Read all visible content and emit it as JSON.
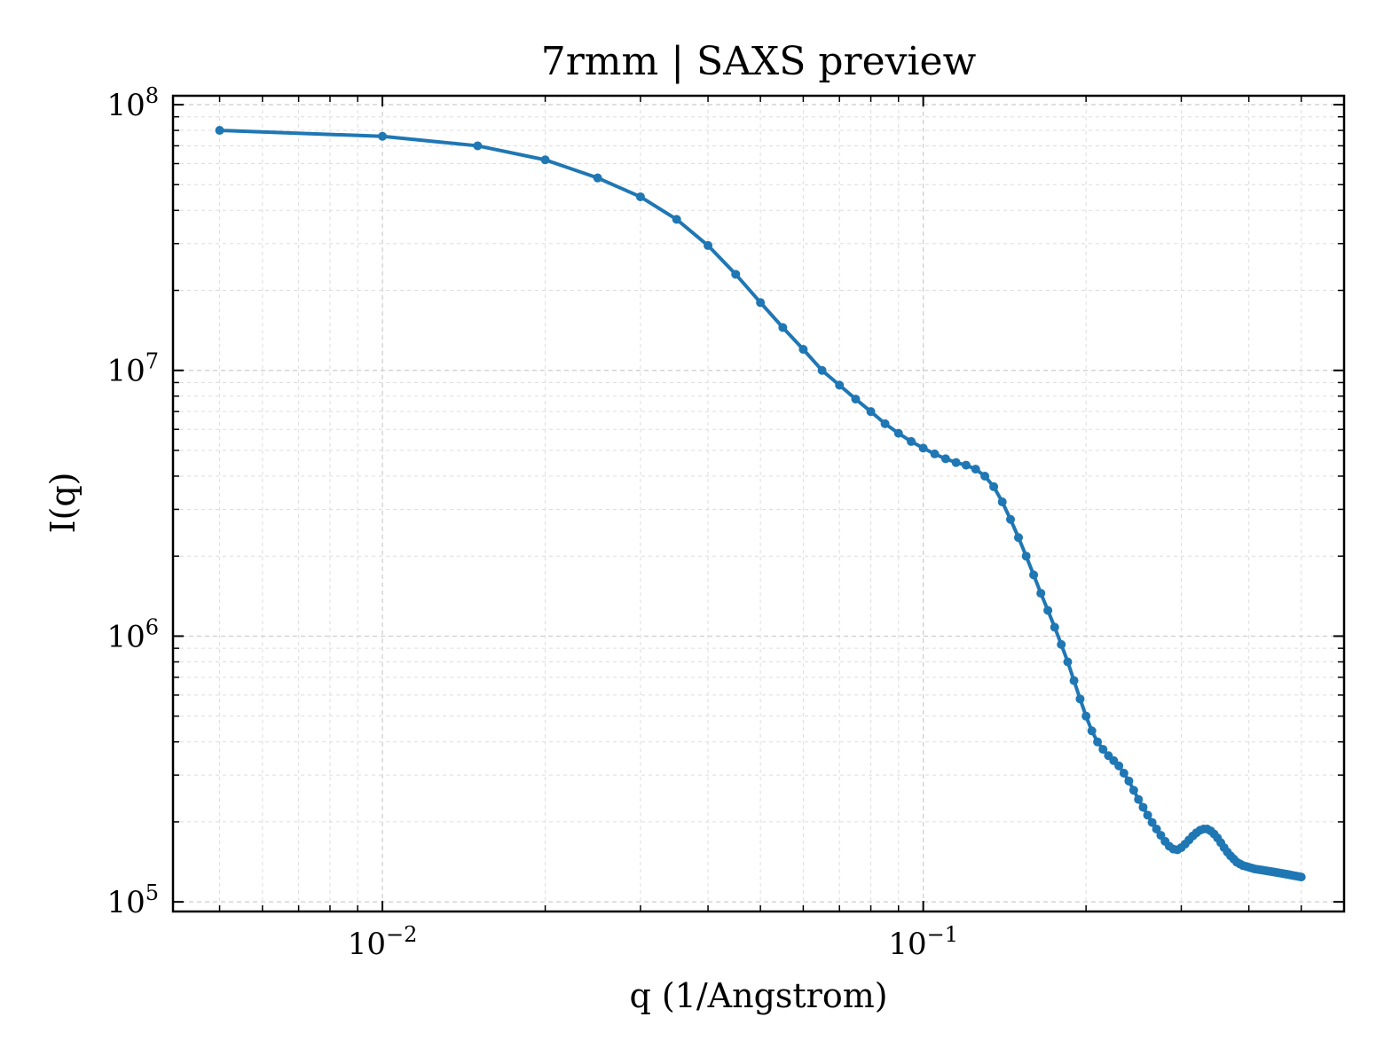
{
  "chart_data": {
    "type": "line",
    "title": "7rmm | SAXS preview",
    "xlabel": "q (1/Angstrom)",
    "ylabel": "I(q)",
    "xscale": "log",
    "yscale": "log",
    "xlim": [
      0.0041,
      0.6
    ],
    "ylim": [
      92000,
      108000000
    ],
    "grid": true,
    "x_ticks": [
      {
        "base": "10",
        "exp": "−2",
        "value": 0.01
      },
      {
        "base": "10",
        "exp": "−1",
        "value": 0.1
      }
    ],
    "y_ticks": [
      {
        "base": "10",
        "exp": "5",
        "value": 100000
      },
      {
        "base": "10",
        "exp": "6",
        "value": 1000000
      },
      {
        "base": "10",
        "exp": "7",
        "value": 10000000
      },
      {
        "base": "10",
        "exp": "8",
        "value": 100000000
      }
    ],
    "colors": {
      "series": "#1f77b4"
    },
    "series": [
      {
        "marker": "circle",
        "x": [
          0.005,
          0.01,
          0.015,
          0.02,
          0.025,
          0.03,
          0.035,
          0.04,
          0.045,
          0.05,
          0.055,
          0.06,
          0.065,
          0.07,
          0.075,
          0.08,
          0.085,
          0.09,
          0.095,
          0.1,
          0.105,
          0.11,
          0.115,
          0.12,
          0.125,
          0.13,
          0.135,
          0.14,
          0.145,
          0.15,
          0.155,
          0.16,
          0.165,
          0.17,
          0.175,
          0.18,
          0.185,
          0.19,
          0.195,
          0.2,
          0.205,
          0.21,
          0.215,
          0.22,
          0.225,
          0.23,
          0.235,
          0.24,
          0.245,
          0.25,
          0.255,
          0.26,
          0.265,
          0.27,
          0.275,
          0.28,
          0.285,
          0.29,
          0.295,
          0.3,
          0.305,
          0.31,
          0.315,
          0.32,
          0.325,
          0.33,
          0.335,
          0.34,
          0.345,
          0.35,
          0.355,
          0.36,
          0.365,
          0.37,
          0.375,
          0.38,
          0.385,
          0.39,
          0.395,
          0.4,
          0.405,
          0.41,
          0.415,
          0.42,
          0.425,
          0.43,
          0.435,
          0.44,
          0.445,
          0.45,
          0.455,
          0.46,
          0.465,
          0.47,
          0.475,
          0.48,
          0.485,
          0.49,
          0.495,
          0.5
        ],
        "y": [
          80000000,
          76000000,
          70000000,
          62000000,
          53000000,
          45000000,
          37000000,
          29500000,
          23000000,
          18000000,
          14500000,
          12000000,
          10000000,
          8800000,
          7800000,
          7000000,
          6300000,
          5800000,
          5400000,
          5100000,
          4850000,
          4650000,
          4500000,
          4400000,
          4250000,
          4000000,
          3650000,
          3200000,
          2750000,
          2350000,
          2000000,
          1700000,
          1450000,
          1250000,
          1080000,
          930000,
          800000,
          680000,
          580000,
          500000,
          440000,
          400000,
          375000,
          355000,
          340000,
          325000,
          305000,
          285000,
          263000,
          243000,
          227000,
          212000,
          199000,
          188000,
          178000,
          169000,
          162000,
          158000,
          157000,
          160000,
          165000,
          171000,
          177000,
          182000,
          186000,
          188000,
          188000,
          185000,
          180000,
          174000,
          167000,
          160000,
          154000,
          149000,
          145000,
          141000,
          139000,
          137000,
          136000,
          135000,
          134000,
          133000,
          132500,
          132000,
          131500,
          131000,
          130500,
          130000,
          129500,
          129000,
          128500,
          128000,
          127500,
          127000,
          126500,
          126000,
          125500,
          125000,
          124500,
          124000
        ]
      }
    ]
  }
}
